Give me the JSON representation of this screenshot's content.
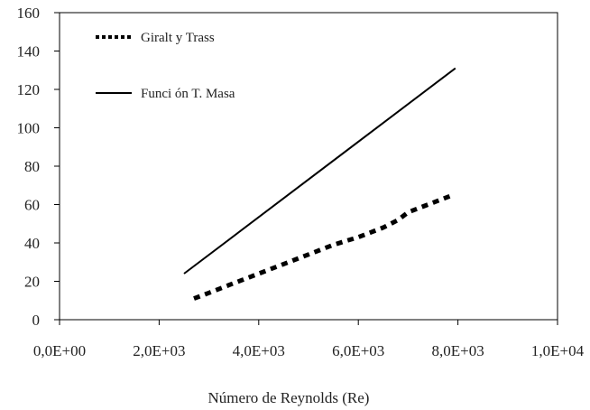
{
  "chart_data": {
    "type": "line",
    "xlabel": "Número de Reynolds (Re)",
    "ylabel": "",
    "xlim": [
      0,
      10000
    ],
    "ylim": [
      0,
      160
    ],
    "x_ticks": [
      0,
      2000,
      4000,
      6000,
      8000,
      10000
    ],
    "x_tick_labels": [
      "0,0E+00",
      "2,0E+03",
      "4,0E+03",
      "6,0E+03",
      "8,0E+03",
      "1,0E+04"
    ],
    "y_ticks": [
      0,
      20,
      40,
      60,
      80,
      100,
      120,
      140,
      160
    ],
    "y_tick_labels": [
      "0",
      "20",
      "40",
      "60",
      "80",
      "100",
      "120",
      "140",
      "160"
    ],
    "grid": false,
    "legend_position": "top-left",
    "series": [
      {
        "name": "Giralt y Trass",
        "style": "dotted",
        "color": "#000000",
        "x": [
          2700,
          3000,
          3500,
          4000,
          4500,
          5000,
          5500,
          6000,
          6500,
          6800,
          7000,
          7500,
          7900
        ],
        "y": [
          11,
          14,
          19,
          24,
          29,
          34,
          39,
          43,
          48,
          52,
          56,
          61,
          65
        ]
      },
      {
        "name": "Funci ón T. Masa",
        "style": "solid",
        "color": "#000000",
        "x": [
          2500,
          7950
        ],
        "y": [
          24,
          131
        ]
      }
    ]
  }
}
